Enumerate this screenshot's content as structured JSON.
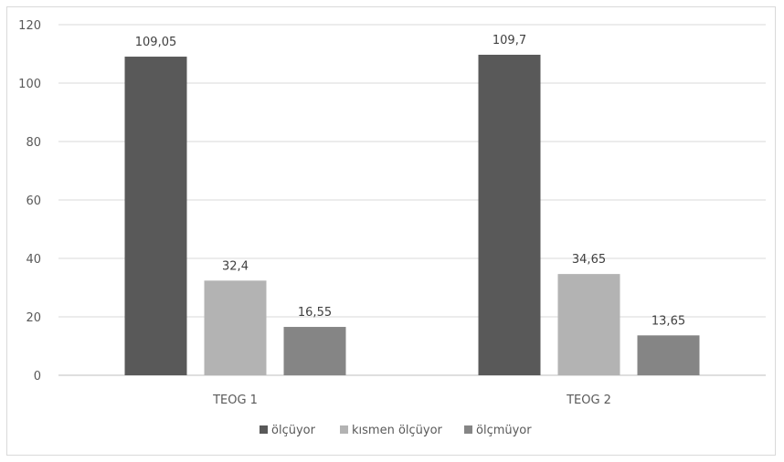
{
  "chart_data": {
    "type": "bar",
    "categories": [
      "TEOG 1",
      "TEOG 2"
    ],
    "series": [
      {
        "name": "ölçüyor",
        "values": [
          109.05,
          109.7
        ],
        "labels": [
          "109,05",
          "109,7"
        ],
        "color": "#595959"
      },
      {
        "name": "kısmen ölçüyor",
        "values": [
          32.4,
          34.65
        ],
        "labels": [
          "32,4",
          "34,65"
        ],
        "color": "#b3b3b3"
      },
      {
        "name": "ölçmüyor",
        "values": [
          16.55,
          13.65
        ],
        "labels": [
          "16,55",
          "13,65"
        ],
        "color": "#858585"
      }
    ],
    "y_ticks": [
      "0",
      "20",
      "40",
      "60",
      "80",
      "100",
      "120"
    ],
    "ylim": [
      0,
      120
    ],
    "grid": true,
    "legend_position": "bottom",
    "gridline_color": "#d9d9d9",
    "axis_color": "#bfbfbf"
  }
}
